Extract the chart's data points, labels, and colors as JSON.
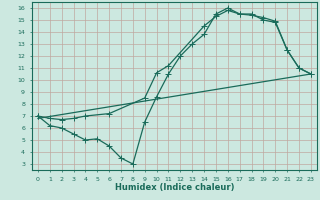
{
  "xlabel": "Humidex (Indice chaleur)",
  "bg_color": "#cce8e0",
  "grid_color": "#b0d0c8",
  "line_color": "#1a6b5a",
  "xlim": [
    -0.5,
    23.5
  ],
  "ylim": [
    2.5,
    16.5
  ],
  "xticks": [
    0,
    1,
    2,
    3,
    4,
    5,
    6,
    7,
    8,
    9,
    10,
    11,
    12,
    13,
    14,
    15,
    16,
    17,
    18,
    19,
    20,
    21,
    22,
    23
  ],
  "yticks": [
    3,
    4,
    5,
    6,
    7,
    8,
    9,
    10,
    11,
    12,
    13,
    14,
    15,
    16
  ],
  "line1_x": [
    0,
    1,
    2,
    3,
    4,
    5,
    6,
    7,
    8,
    9,
    10,
    11,
    12,
    13,
    14,
    15,
    16,
    17,
    18,
    19,
    20,
    21,
    22,
    23
  ],
  "line1_y": [
    7.0,
    6.2,
    6.0,
    5.5,
    5.0,
    5.1,
    4.5,
    3.5,
    3.0,
    6.5,
    8.6,
    10.5,
    12.0,
    13.0,
    13.8,
    15.5,
    16.0,
    15.5,
    15.5,
    15.0,
    14.8,
    12.5,
    11.0,
    10.5
  ],
  "line2_x": [
    0,
    1,
    2,
    3,
    4,
    6,
    9,
    10,
    11,
    14,
    15,
    16,
    17,
    18,
    19,
    20,
    21,
    22,
    23
  ],
  "line2_y": [
    7.0,
    6.8,
    6.7,
    6.8,
    7.0,
    7.2,
    8.5,
    10.6,
    11.2,
    14.5,
    15.3,
    15.8,
    15.5,
    15.4,
    15.2,
    14.9,
    12.5,
    11.0,
    10.5
  ],
  "line3_x": [
    0,
    23
  ],
  "line3_y": [
    6.8,
    10.5
  ]
}
